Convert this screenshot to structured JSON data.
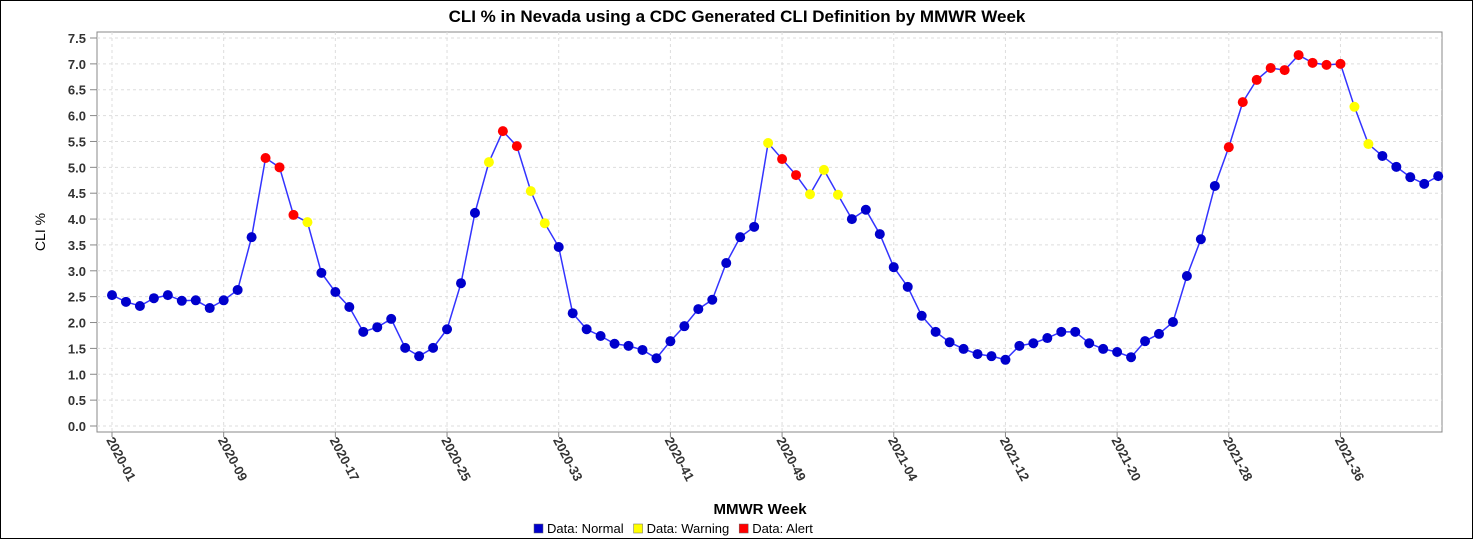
{
  "chart_data": {
    "type": "line",
    "title": "CLI % in Nevada using a CDC Generated CLI Definition by MMWR Week",
    "x_label": "MMWR Week",
    "y_label": "CLI %",
    "categories": [
      "2020-01",
      null,
      null,
      null,
      null,
      null,
      null,
      null,
      "2020-09",
      null,
      null,
      null,
      null,
      null,
      null,
      null,
      "2020-17",
      null,
      null,
      null,
      null,
      null,
      null,
      null,
      "2020-25",
      null,
      null,
      null,
      null,
      null,
      null,
      null,
      "2020-33",
      null,
      null,
      null,
      null,
      null,
      null,
      null,
      "2020-41",
      null,
      null,
      null,
      null,
      null,
      null,
      null,
      "2020-49",
      null,
      null,
      null,
      null,
      null,
      null,
      null,
      "2021-04",
      null,
      null,
      null,
      null,
      null,
      null,
      null,
      "2021-12",
      null,
      null,
      null,
      null,
      null,
      null,
      null,
      "2021-20",
      null,
      null,
      null,
      null,
      null,
      null,
      null,
      "2021-28",
      null,
      null,
      null,
      null,
      null,
      null,
      null,
      "2021-36",
      null,
      null,
      null,
      null,
      null,
      null,
      null
    ],
    "values": [
      2.53,
      2.4,
      2.32,
      2.47,
      2.53,
      2.42,
      2.43,
      2.28,
      2.43,
      2.63,
      3.65,
      5.18,
      5.0,
      4.08,
      3.94,
      2.96,
      2.59,
      2.3,
      1.82,
      1.91,
      2.07,
      1.51,
      1.35,
      1.51,
      1.87,
      2.76,
      4.12,
      5.1,
      5.7,
      5.41,
      4.54,
      3.92,
      3.46,
      2.18,
      1.87,
      1.74,
      1.59,
      1.55,
      1.47,
      1.31,
      1.64,
      1.93,
      2.26,
      2.44,
      3.15,
      3.65,
      3.85,
      5.47,
      5.16,
      4.85,
      4.48,
      4.95,
      4.47,
      4.0,
      4.18,
      3.71,
      3.07,
      2.69,
      2.13,
      1.82,
      1.62,
      1.49,
      1.39,
      1.35,
      1.28,
      1.55,
      1.6,
      1.7,
      1.82,
      1.82,
      1.6,
      1.49,
      1.43,
      1.33,
      1.64,
      1.78,
      2.01,
      2.9,
      3.61,
      4.64,
      5.39,
      6.26,
      6.69,
      6.92,
      6.88,
      7.17,
      7.02,
      6.98,
      7.0,
      6.17,
      5.45,
      5.22,
      5.01,
      4.81,
      4.68,
      4.83
    ],
    "status": [
      0,
      0,
      0,
      0,
      0,
      0,
      0,
      0,
      0,
      0,
      0,
      2,
      2,
      2,
      1,
      0,
      0,
      0,
      0,
      0,
      0,
      0,
      0,
      0,
      0,
      0,
      0,
      1,
      2,
      2,
      1,
      1,
      0,
      0,
      0,
      0,
      0,
      0,
      0,
      0,
      0,
      0,
      0,
      0,
      0,
      0,
      0,
      1,
      2,
      2,
      1,
      1,
      1,
      0,
      0,
      0,
      0,
      0,
      0,
      0,
      0,
      0,
      0,
      0,
      0,
      0,
      0,
      0,
      0,
      0,
      0,
      0,
      0,
      0,
      0,
      0,
      0,
      0,
      0,
      0,
      2,
      2,
      2,
      2,
      2,
      2,
      2,
      2,
      2,
      1,
      1,
      0,
      0,
      0,
      0,
      0
    ],
    "line_color": "#3333ff",
    "legend": [
      {
        "name": "Data: Normal",
        "color": "#0000cc"
      },
      {
        "name": "Data: Warning",
        "color": "#ffff00"
      },
      {
        "name": "Data: Alert",
        "color": "#ff0000"
      }
    ],
    "ylim": [
      0,
      7.5
    ],
    "yticks": [
      {
        "value": 0,
        "label": "0.0"
      },
      0.5,
      {
        "value": 1,
        "label": "1.0"
      },
      1.5,
      {
        "value": 2,
        "label": "2.0"
      },
      2.5,
      {
        "value": 3,
        "label": "3.0"
      },
      3.5,
      {
        "value": 4,
        "label": "4.0"
      },
      4.5,
      {
        "value": 5,
        "label": "5.0"
      },
      5.5,
      {
        "value": 6,
        "label": "6.0"
      },
      6.5,
      {
        "value": 7,
        "label": "7.0"
      },
      7.5
    ],
    "grid": true
  }
}
